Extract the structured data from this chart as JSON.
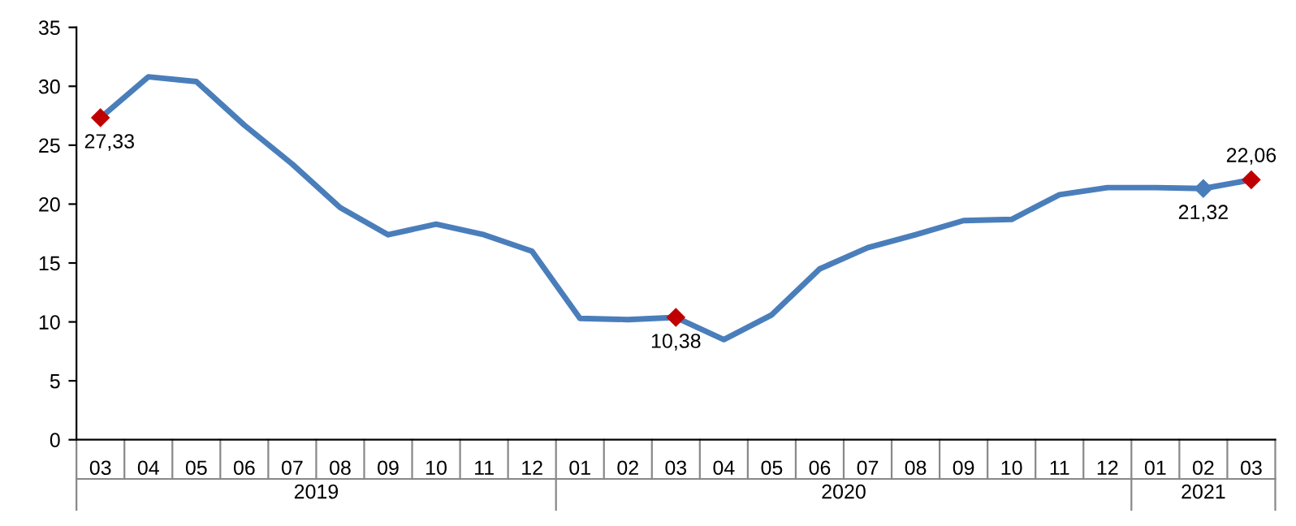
{
  "chart_data": {
    "type": "line",
    "categories": [
      "03",
      "04",
      "05",
      "06",
      "07",
      "08",
      "09",
      "10",
      "11",
      "12",
      "01",
      "02",
      "03",
      "04",
      "05",
      "06",
      "07",
      "08",
      "09",
      "10",
      "11",
      "12",
      "01",
      "02",
      "03"
    ],
    "series": [
      {
        "color": "#4a7ebb",
        "values": [
          27.33,
          30.8,
          30.4,
          26.7,
          23.4,
          19.7,
          17.4,
          18.3,
          17.4,
          16.0,
          10.3,
          10.2,
          10.38,
          8.5,
          10.6,
          14.5,
          16.3,
          17.4,
          18.6,
          18.7,
          20.8,
          21.4,
          21.4,
          21.32,
          22.06
        ],
        "value_labels": [
          "27,33",
          null,
          null,
          null,
          null,
          null,
          null,
          null,
          null,
          null,
          null,
          null,
          "10,38",
          null,
          null,
          null,
          null,
          null,
          null,
          null,
          null,
          null,
          null,
          "21,32",
          "22,06"
        ],
        "colors": [
          "#c00000",
          null,
          null,
          null,
          null,
          null,
          null,
          null,
          null,
          null,
          null,
          null,
          "#c00000",
          null,
          null,
          null,
          null,
          null,
          null,
          null,
          null,
          null,
          null,
          "#4a7ebb",
          "#c00000"
        ]
      }
    ],
    "annotations": [
      "2019",
      "2020",
      "2021"
    ],
    "ylim": [
      0,
      35
    ],
    "yticks": [
      0,
      5,
      10,
      15,
      20,
      25,
      30,
      35
    ],
    "grid": false,
    "line_style": "solid"
  }
}
